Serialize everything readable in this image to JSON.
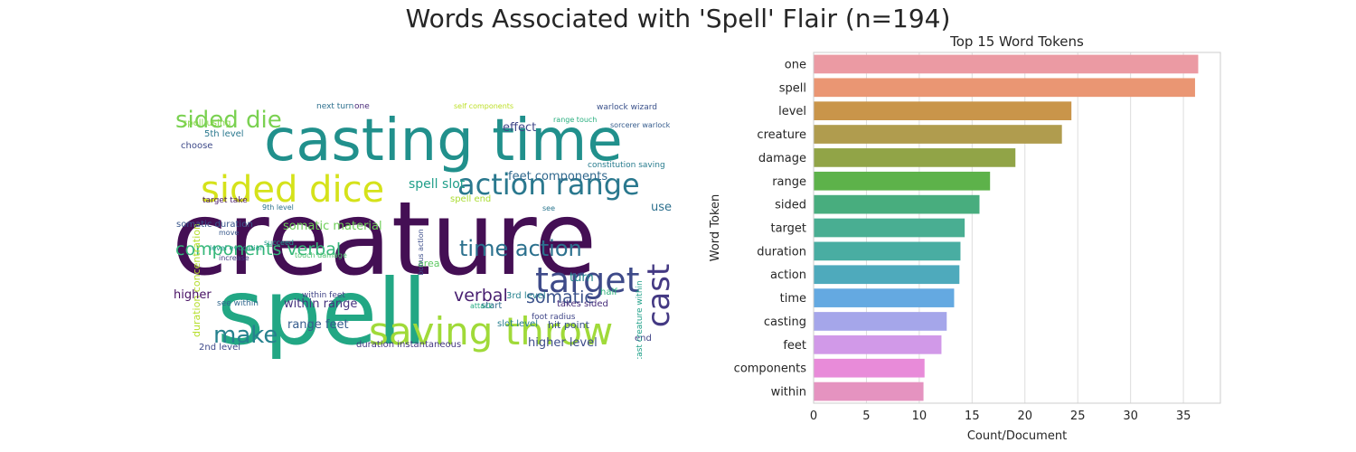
{
  "suptitle": "Words Associated with 'Spell' Flair (n=194)",
  "wordcloud": {
    "words": [
      {
        "text": "creature",
        "color": "#440f54"
      },
      {
        "text": "casting time",
        "color": "#21908c"
      },
      {
        "text": "spell",
        "color": "#22a784"
      },
      {
        "text": "sided dice",
        "color": "#d5e21a"
      },
      {
        "text": "action range",
        "color": "#2a788e"
      },
      {
        "text": "target",
        "color": "#3e4a89"
      },
      {
        "text": "saving throw",
        "color": "#a0da39"
      },
      {
        "text": "sided die",
        "color": "#7ad151"
      },
      {
        "text": "components verbal",
        "color": "#35b779"
      },
      {
        "text": "time action",
        "color": "#2c718e"
      },
      {
        "text": "cast",
        "color": "#443983"
      },
      {
        "text": "make",
        "color": "#26818e"
      },
      {
        "text": "verbal",
        "color": "#481f70"
      },
      {
        "text": "somatic",
        "color": "#3b528b"
      },
      {
        "text": "spell slot",
        "color": "#1f9e89"
      },
      {
        "text": "somatic material",
        "color": "#6ece58"
      },
      {
        "text": "feet components",
        "color": "#31688e"
      },
      {
        "text": "duration concentration",
        "color": "#b5de2b"
      },
      {
        "text": "effect",
        "color": "#3f4788"
      },
      {
        "text": "higher",
        "color": "#471063"
      },
      {
        "text": "within range",
        "color": "#46337e"
      },
      {
        "text": "range feet",
        "color": "#365c8d"
      },
      {
        "text": "higher level",
        "color": "#3e4c8a"
      },
      {
        "text": "use",
        "color": "#2d708e"
      },
      {
        "text": "turn",
        "color": "#24878e"
      },
      {
        "text": "somatic duration",
        "color": "#39568c"
      },
      {
        "text": "spell using",
        "color": "#86d549"
      },
      {
        "text": "5th level",
        "color": "#2a788e"
      },
      {
        "text": "choose",
        "color": "#3e4a89"
      },
      {
        "text": "duration instantaneous",
        "color": "#453882"
      },
      {
        "text": "hit point",
        "color": "#3b528b"
      },
      {
        "text": "slot level",
        "color": "#277f8e"
      },
      {
        "text": "3rd level",
        "color": "#26828e"
      },
      {
        "text": "takes sided",
        "color": "#472d7b"
      },
      {
        "text": "start",
        "color": "#306a8e"
      },
      {
        "text": "area",
        "color": "#5ec962"
      },
      {
        "text": "half",
        "color": "#2fb47c"
      },
      {
        "text": "end",
        "color": "#414487"
      },
      {
        "text": "cast creature within",
        "color": "#1fa088"
      },
      {
        "text": "next turn",
        "color": "#2d708e"
      },
      {
        "text": "one",
        "color": "#482878"
      },
      {
        "text": "self components",
        "color": "#bddf26"
      },
      {
        "text": "warlock wizard",
        "color": "#3b528b"
      },
      {
        "text": "sorcerer warlock",
        "color": "#365c8d"
      },
      {
        "text": "spell end",
        "color": "#aadc32"
      },
      {
        "text": "constitution saving",
        "color": "#287c8e"
      },
      {
        "text": "9th level",
        "color": "#2c738e"
      },
      {
        "text": "succeed",
        "color": "#1f988b"
      },
      {
        "text": "increase",
        "color": "#433e85"
      },
      {
        "text": "2nd level",
        "color": "#3e4989"
      },
      {
        "text": "target take",
        "color": "#481769"
      },
      {
        "text": "move",
        "color": "#38598c"
      },
      {
        "text": "see within",
        "color": "#31688e"
      },
      {
        "text": "within feet",
        "color": "#414487"
      },
      {
        "text": "range touch",
        "color": "#29af7f"
      },
      {
        "text": "bonus action",
        "color": "#3d4e8a"
      },
      {
        "text": "foot radius",
        "color": "#404688"
      },
      {
        "text": "level evocation",
        "color": "#1e9b8a"
      },
      {
        "text": "touch damage",
        "color": "#4ac16d"
      },
      {
        "text": "see",
        "color": "#2a768e"
      },
      {
        "text": "attack",
        "color": "#25ab82"
      }
    ]
  },
  "chart_data": {
    "type": "bar",
    "orientation": "horizontal",
    "title": "Top 15 Word Tokens",
    "xlabel": "Count/Document",
    "ylabel": "Word Token",
    "categories": [
      "one",
      "spell",
      "level",
      "creature",
      "damage",
      "range",
      "sided",
      "target",
      "duration",
      "action",
      "time",
      "casting",
      "feet",
      "components",
      "within"
    ],
    "values": [
      36.4,
      36.1,
      24.4,
      23.5,
      19.1,
      16.7,
      15.7,
      14.3,
      13.9,
      13.8,
      13.3,
      12.6,
      12.1,
      10.5,
      10.4
    ],
    "colors": [
      "#eb9aa3",
      "#ea9673",
      "#c9954a",
      "#b09c4e",
      "#91a447",
      "#5db24a",
      "#48ad7e",
      "#49ae92",
      "#49ada2",
      "#4eaabc",
      "#64a9e1",
      "#a5a6ea",
      "#d199e8",
      "#e88bd9",
      "#e593c0"
    ],
    "xlim": [
      0,
      38.5
    ],
    "xticks": [
      0,
      5,
      10,
      15,
      20,
      25,
      30,
      35
    ],
    "grid": true,
    "legend": "none"
  }
}
